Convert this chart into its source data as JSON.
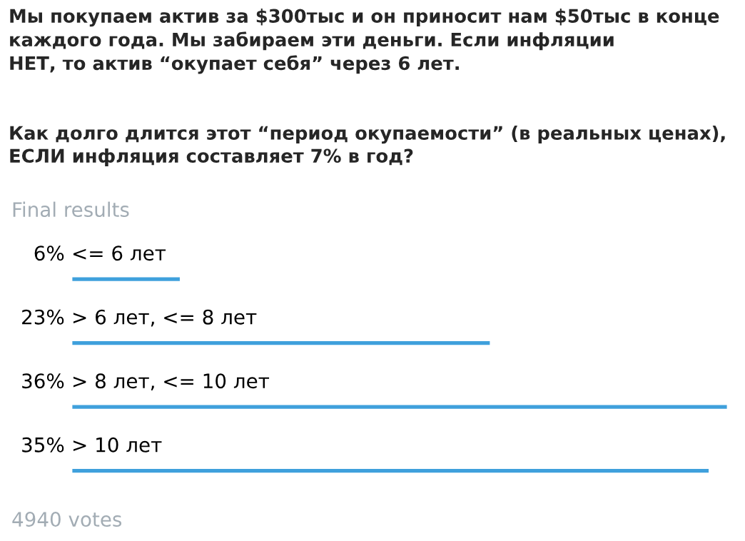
{
  "chart_data": {
    "type": "bar",
    "orientation": "horizontal",
    "title": "Мы покупаем актив за $300тыс и он приносит нам $50тыс в конце каждого года. Мы забираем эти деньги. Если инфляции НЕТ, то актив “окупает себя” через 6 лет.",
    "subtitle": "Как долго длится этот “период окупаемости” (в реальных ценах), ЕСЛИ инфляция составляет 7% в год?",
    "categories": [
      "<= 6 лет",
      "> 6 лет, <= 8 лет",
      "> 8 лет, <= 10 лет",
      "> 10 лет"
    ],
    "values": [
      6,
      23,
      36,
      35
    ],
    "value_labels": [
      "6%",
      "23%",
      "36%",
      "35%"
    ],
    "color": "#3fa0dc",
    "annotations": [
      "Final results",
      "4940 votes"
    ],
    "legend": false
  }
}
